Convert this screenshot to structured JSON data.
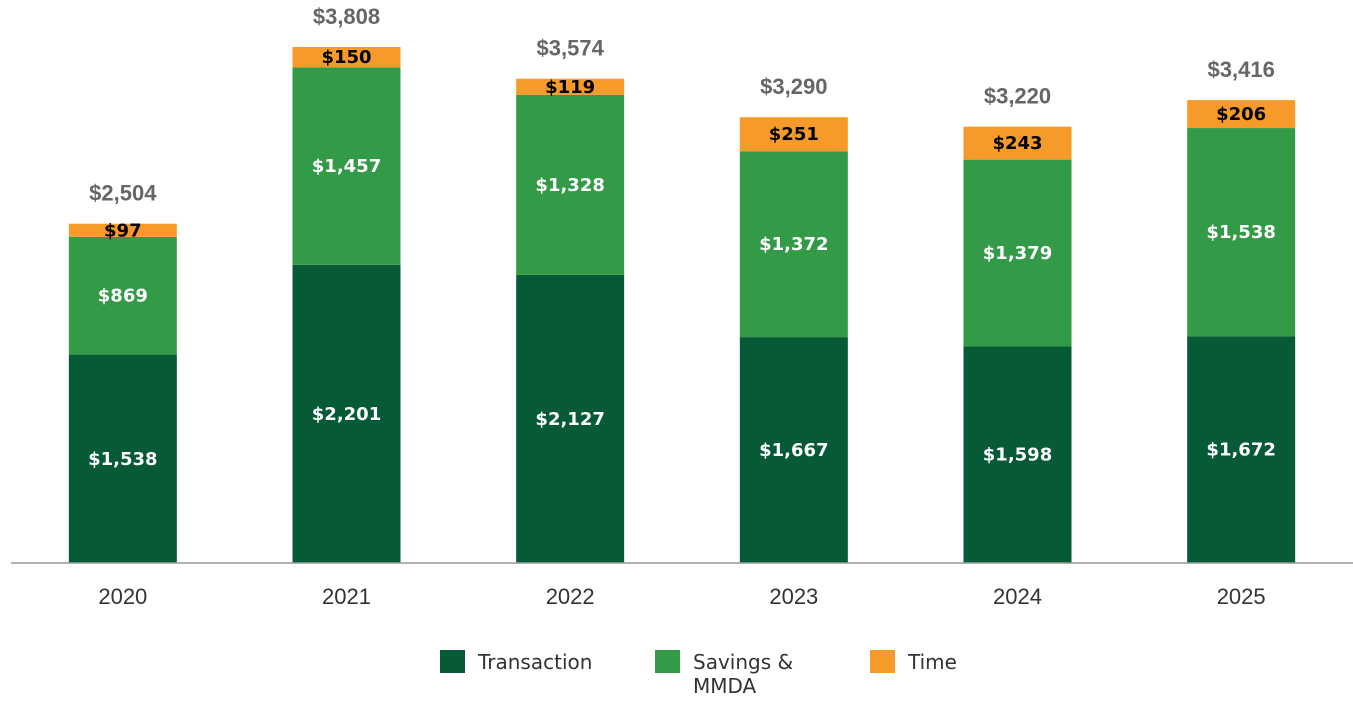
{
  "chart_data": {
    "type": "stacked-bar",
    "categories": [
      "2020",
      "2021",
      "2022",
      "2023",
      "2024",
      "2025"
    ],
    "series": [
      {
        "name": "Transaction",
        "color": "#065a36",
        "label_color": "#ffffff",
        "values": [
          1538,
          2201,
          2127,
          1667,
          1598,
          1672
        ],
        "value_labels": [
          "$1,538",
          "$2,201",
          "$2,127",
          "$1,667",
          "$1,598",
          "$1,672"
        ]
      },
      {
        "name": "Savings & MMDA",
        "color": "#339b47",
        "label_color": "#ffffff",
        "values": [
          869,
          1457,
          1328,
          1372,
          1379,
          1538
        ],
        "value_labels": [
          "$869",
          "$1,457",
          "$1,328",
          "$1,372",
          "$1,379",
          "$1,538"
        ]
      },
      {
        "name": "Time",
        "color": "#f69b2a",
        "label_color": "#000000",
        "values": [
          97,
          150,
          119,
          251,
          243,
          206
        ],
        "value_labels": [
          "$97",
          "$150",
          "$119",
          "$251",
          "$243",
          "$206"
        ]
      }
    ],
    "totals": [
      2504,
      3808,
      3574,
      3290,
      3220,
      3416
    ],
    "total_labels": [
      "$2,504",
      "$3,808",
      "$3,574",
      "$3,290",
      "$3,220",
      "$3,416"
    ],
    "ylim": [
      0,
      4000
    ],
    "grid": false
  }
}
